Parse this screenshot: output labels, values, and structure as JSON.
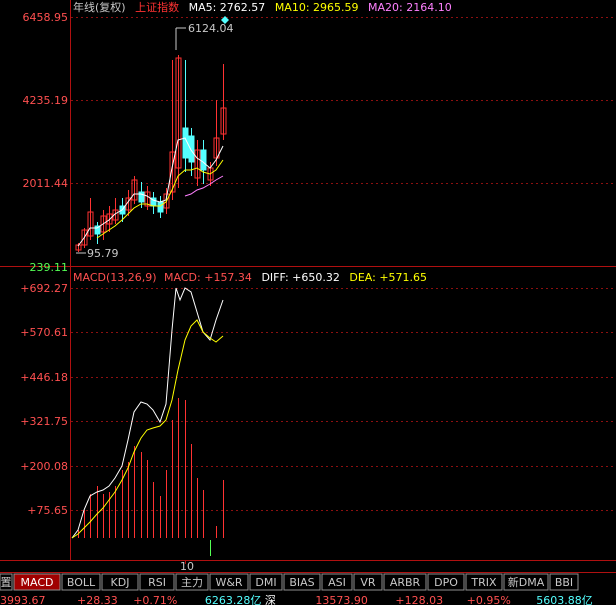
{
  "header": {
    "period_label": "年线(复权)",
    "index_name": "上证指数",
    "ma5": "MA5: 2762.57",
    "ma10": "MA10: 2965.59",
    "ma20": "MA20: 2164.10"
  },
  "price_axis": [
    "6458.95",
    "4235.19",
    "2011.44",
    "239.11"
  ],
  "annotations": {
    "high": "6124.04",
    "low": "95.79"
  },
  "macd_header": {
    "name": "MACD(13,26,9)",
    "macd": "MACD: +157.34",
    "diff": "DIFF: +650.32",
    "dea": "DEA: +571.65"
  },
  "macd_axis": [
    "+692.27",
    "+570.61",
    "+446.18",
    "+321.75",
    "+200.08",
    "+75.65"
  ],
  "x_axis_label": "10",
  "tabs": [
    {
      "label": "置",
      "active": false
    },
    {
      "label": "MACD",
      "active": true
    },
    {
      "label": "BOLL",
      "active": false
    },
    {
      "label": "KDJ",
      "active": false
    },
    {
      "label": "RSI",
      "active": false
    },
    {
      "label": "主力",
      "active": false
    },
    {
      "label": "W&R",
      "active": false
    },
    {
      "label": "DMI",
      "active": false
    },
    {
      "label": "BIAS",
      "active": false
    },
    {
      "label": "ASI",
      "active": false
    },
    {
      "label": "VR",
      "active": false
    },
    {
      "label": "ARBR",
      "active": false
    },
    {
      "label": "DPO",
      "active": false
    },
    {
      "label": "TRIX",
      "active": false
    },
    {
      "label": "新DMA",
      "active": false
    },
    {
      "label": "BBI",
      "active": false
    }
  ],
  "status_bar": {
    "a": "3993.67",
    "b": "+28.33",
    "c": "+0.71%",
    "d": "6263.28亿",
    "e": "深",
    "f": "13573.90",
    "g": "+128.03",
    "h": "+0.95%",
    "i": "5603.88亿"
  },
  "colors": {
    "up": "#ff3232",
    "down": "#54ffff",
    "ma5": "#ffffff",
    "ma10": "#ffff00",
    "ma20": "#ff80ff",
    "grid": "#9a1010",
    "axis_text": "#ff5050"
  }
}
